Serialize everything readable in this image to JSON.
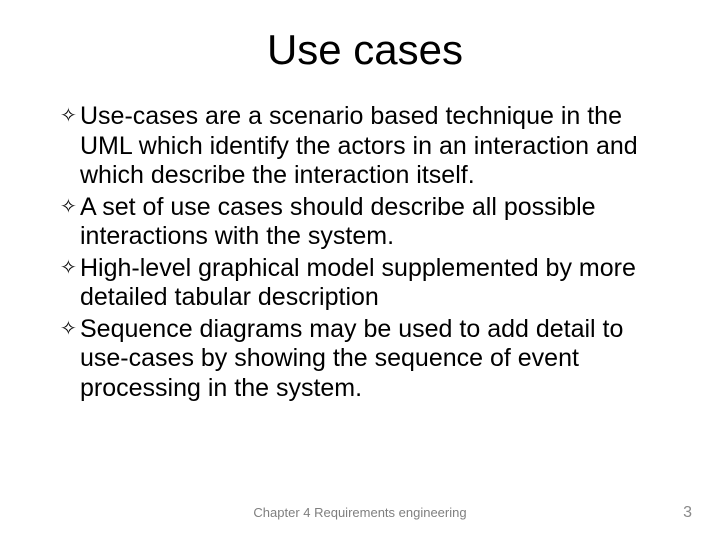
{
  "title": "Use cases",
  "bullets": [
    "Use-cases are a scenario based technique in the UML which identify the actors in an interaction and which describe the interaction itself.",
    "A set of use cases should describe all possible interactions with the system.",
    "High-level graphical model supplemented by more detailed tabular description",
    "Sequence diagrams may be used to add detail to use-cases by showing the sequence of event processing in the system."
  ],
  "footer": "Chapter 4 Requirements engineering",
  "page_number": "3",
  "bullet_glyph": "✧",
  "colors": {
    "background": "#ffffff",
    "text": "#000000",
    "footer": "#7f7f7f",
    "pageno": "#898989"
  },
  "fonts": {
    "title_size_pt": 42,
    "body_size_pt": 25,
    "footer_size_pt": 13,
    "pageno_size_pt": 16
  }
}
